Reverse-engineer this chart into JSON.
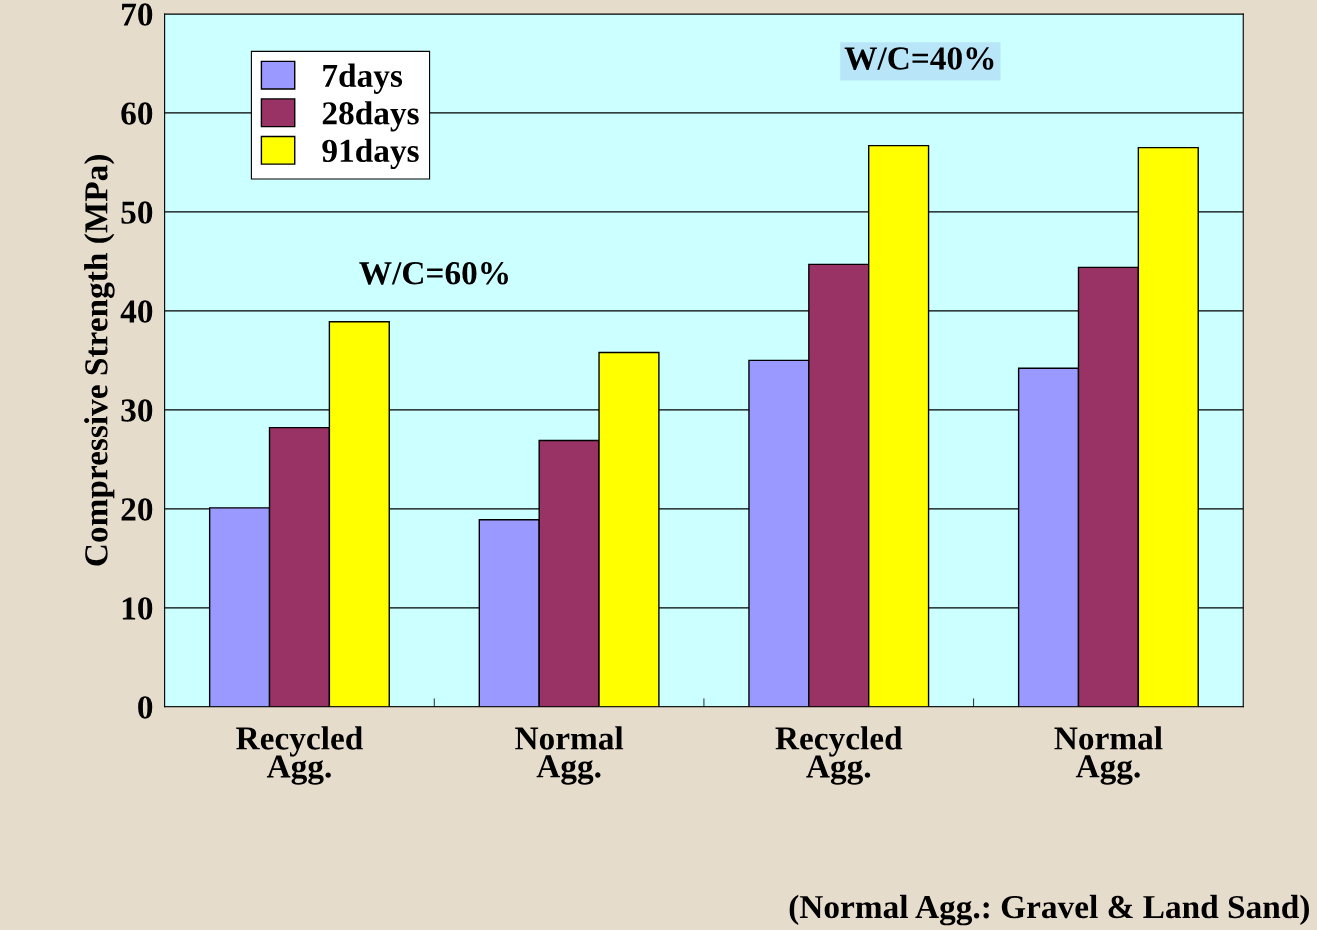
{
  "chart_data": {
    "type": "bar",
    "ylabel": "Compressive Strength (MPa)",
    "categories": [
      "Recycled\nAgg.",
      "Normal\nAgg.",
      "Recycled\nAgg.",
      "Normal\nAgg."
    ],
    "series": [
      {
        "name": "7days",
        "color": "#9999ff",
        "values": [
          20.1,
          18.9,
          35.0,
          34.2
        ]
      },
      {
        "name": "28days",
        "color": "#993366",
        "values": [
          28.2,
          26.9,
          44.7,
          44.4
        ]
      },
      {
        "name": "91days",
        "color": "#ffff00",
        "values": [
          38.9,
          35.8,
          56.7,
          56.5
        ]
      }
    ],
    "ylim": [
      0,
      70
    ],
    "yticks": [
      0,
      10,
      20,
      30,
      40,
      50,
      60,
      70
    ],
    "grid": "y",
    "legend": "top left",
    "annotations": [
      "W/C=60%",
      "W/C=40%",
      "(Normal Agg.: Gravel & Land Sand)"
    ]
  }
}
